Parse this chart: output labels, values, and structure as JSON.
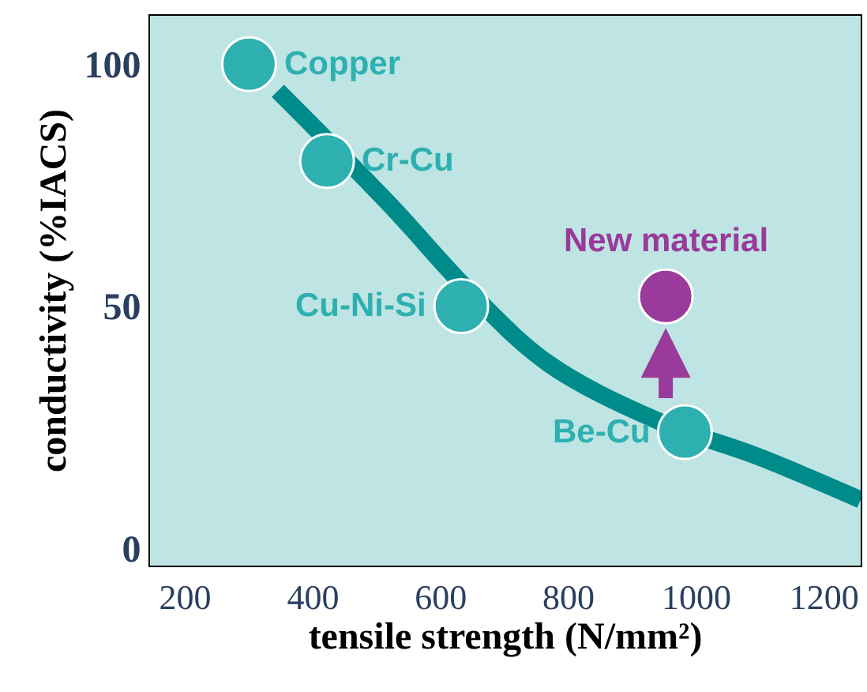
{
  "chart_data": {
    "type": "scatter",
    "xlabel": "tensile strength (N/mm²)",
    "ylabel": "conductivity (%IACS)",
    "xlim": [
      145,
      1257
    ],
    "ylim": [
      -3.6,
      110
    ],
    "xticks": [
      200,
      400,
      600,
      800,
      1000,
      1200
    ],
    "yticks": [
      0,
      50,
      100
    ],
    "grid": false,
    "marker": "circle",
    "series": [
      {
        "type": "line",
        "x": [
          345,
          520,
          645,
          770,
          945,
          1095,
          1257
        ],
        "values": [
          94.5,
          71,
          53,
          38,
          26,
          19,
          10
        ],
        "color": "#008b8b",
        "marker": "none"
      },
      {
        "x": [
          300,
          422,
          632,
          982
        ],
        "values": [
          100,
          80,
          50,
          24
        ],
        "color": "#2fb0b0"
      },
      {
        "x": [
          952
        ],
        "values": [
          52
        ],
        "color": "#9a3a9a"
      }
    ],
    "annotations": [
      {
        "text": "Copper",
        "x": 300,
        "y": 100
      },
      {
        "text": "Cr-Cu",
        "x": 422,
        "y": 80
      },
      {
        "text": "Cu-Ni-Si",
        "x": 632,
        "y": 50
      },
      {
        "text": "Be-Cu",
        "x": 982,
        "y": 24
      },
      {
        "text": "New material",
        "x": 952,
        "y": 52
      }
    ]
  }
}
